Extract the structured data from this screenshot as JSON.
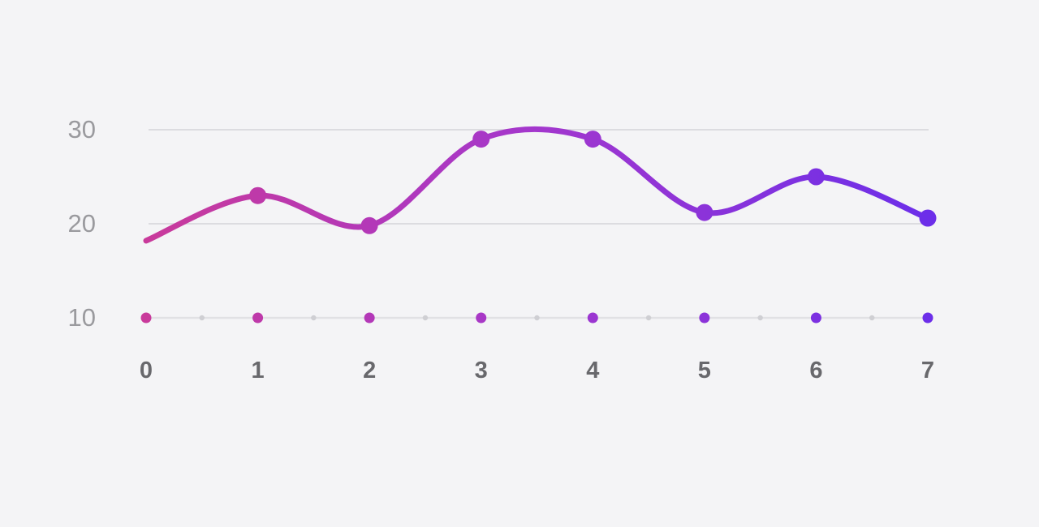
{
  "chart_data": {
    "type": "line",
    "x": [
      0,
      1,
      2,
      3,
      4,
      5,
      6,
      7
    ],
    "x_tick_labels": [
      "0",
      "1",
      "2",
      "3",
      "4",
      "5",
      "6",
      "7"
    ],
    "y_tick_labels": [
      "30",
      "20",
      "10"
    ],
    "y_gridlines": [
      30,
      20
    ],
    "xlim": [
      0,
      7
    ],
    "ylim": [
      10,
      31
    ],
    "grid": "horizontal-only",
    "legend": "none",
    "smoothing": "catmull-rom",
    "x_minor_dots": [
      0.5,
      1.5,
      2.5,
      3.5,
      4.5,
      5.5,
      6.5
    ],
    "series": [
      {
        "name": "main-line",
        "values": [
          18.2,
          23,
          19.8,
          29,
          29,
          21.2,
          25,
          20.6
        ],
        "marker_at": [
          1,
          2,
          3,
          4,
          5,
          6,
          7
        ],
        "stroke": "gradient"
      },
      {
        "name": "flat-baseline",
        "values": [
          10,
          10,
          10,
          10,
          10,
          10,
          10,
          10
        ],
        "marker_at": [
          0,
          1,
          2,
          3,
          4,
          5,
          6,
          7
        ],
        "stroke": "gray"
      }
    ],
    "colors": {
      "gradient_start": "#c93a9b",
      "gradient_mid": "#a337cd",
      "gradient_end": "#6c2ee9",
      "gridline": "#dcdce0",
      "baseline_line": "#e1e1e4",
      "axis_dot_gray": "#cfcfd3",
      "x_label": "#68686c",
      "y_label": "#9a9a9e",
      "background": "#f4f4f6"
    }
  }
}
